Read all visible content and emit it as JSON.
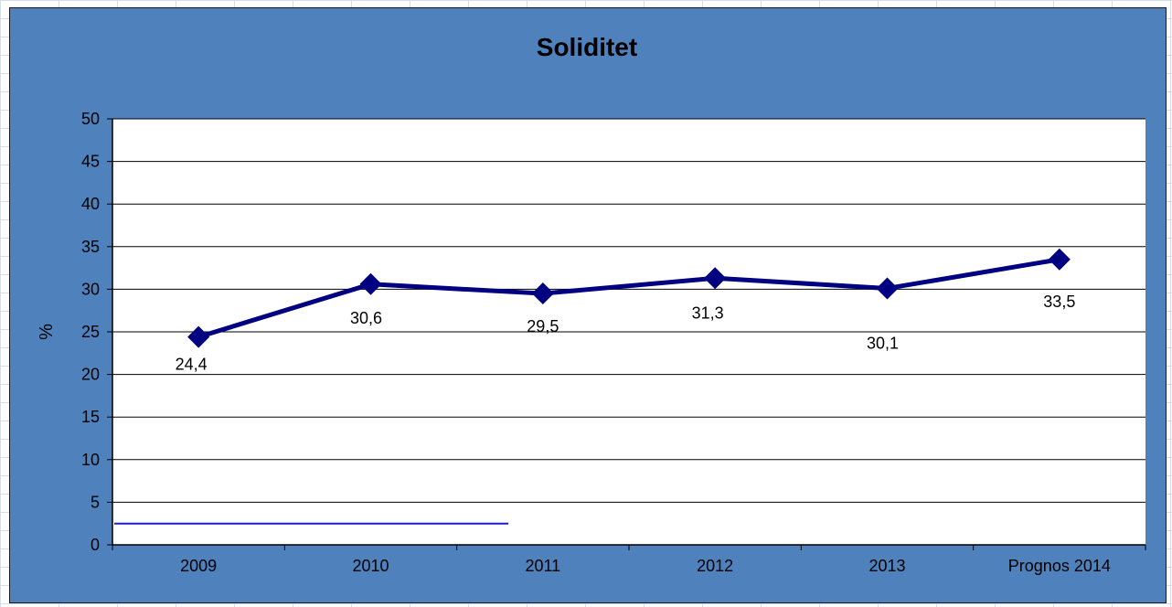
{
  "colors": {
    "chart_background": "#4f81bd",
    "plot_background": "#ffffff",
    "series_line": "#000080",
    "gridline": "#000000",
    "annotation_line": "#1f1fcf"
  },
  "chart_data": {
    "type": "line",
    "title": "Soliditet",
    "xlabel": "",
    "ylabel": "%",
    "categories": [
      "2009",
      "2010",
      "2011",
      "2012",
      "2013",
      "Prognos 2014"
    ],
    "series": [
      {
        "values": [
          24.4,
          30.6,
          29.5,
          31.3,
          30.1,
          33.5
        ],
        "data_labels": [
          "24,4",
          "30,6",
          "29,5",
          "31,3",
          "30,1",
          "33,5"
        ],
        "marker": "diamond"
      }
    ],
    "yticks": [
      "0",
      "5",
      "10",
      "15",
      "20",
      "25",
      "30",
      "35",
      "40",
      "45",
      "50"
    ],
    "ylim": [
      0,
      50
    ],
    "grid": true,
    "legend": "none",
    "annotation_line": {
      "value": 2.5,
      "from_category": "2009",
      "to_category_fraction": 2.3
    }
  }
}
